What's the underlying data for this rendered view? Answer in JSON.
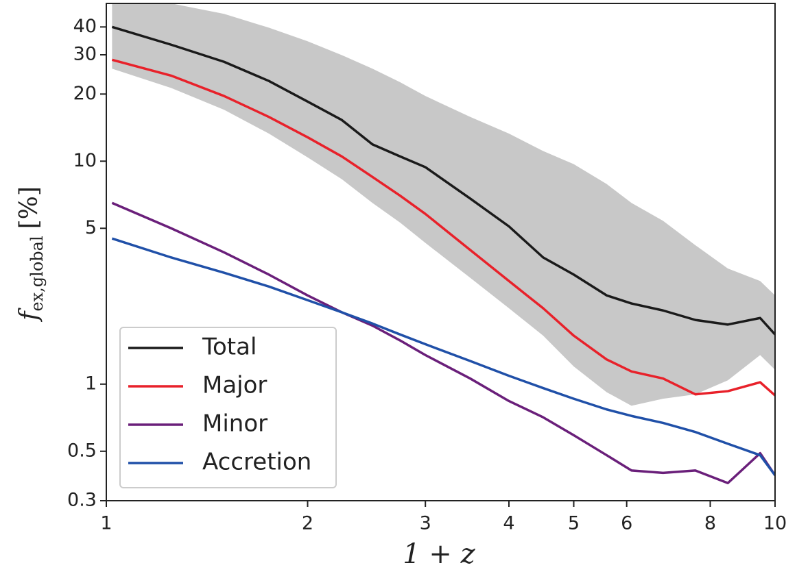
{
  "chart_data": {
    "type": "line",
    "xscale": "log",
    "yscale": "log",
    "xlabel": "1 + z",
    "ylabel": {
      "symbol": "f",
      "subscript": "ex,global",
      "unit": "[%]"
    },
    "xlim": [
      1,
      10
    ],
    "ylim": [
      0.3,
      51
    ],
    "xticks": [
      1,
      2,
      3,
      4,
      5,
      6,
      8,
      10
    ],
    "yticks": [
      0.3,
      0.5,
      1,
      5,
      10,
      20,
      30,
      40
    ],
    "legend": "lower left",
    "x": [
      1.02,
      1.25,
      1.5,
      1.75,
      2,
      2.25,
      2.5,
      2.75,
      3,
      3.5,
      4,
      4.5,
      5,
      5.6,
      6.1,
      6.8,
      7.6,
      8.5,
      9.5,
      10
    ],
    "band": {
      "color": "#c8c8c8",
      "upper": [
        55,
        51,
        45.8,
        39.7,
        34.5,
        29.9,
        26,
        22.6,
        19.6,
        15.8,
        13.3,
        11.1,
        9.7,
        7.9,
        6.5,
        5.4,
        4.2,
        3.3,
        2.9,
        2.5
      ],
      "lower": [
        26,
        21.3,
        17,
        13.3,
        10.4,
        8.3,
        6.5,
        5.3,
        4.3,
        3.0,
        2.19,
        1.65,
        1.2,
        0.92,
        0.8,
        0.86,
        0.9,
        1.04,
        1.35,
        1.16
      ]
    },
    "series": [
      {
        "name": "Total",
        "color": "#1a1a1a",
        "values": [
          40,
          33.3,
          27.9,
          22.9,
          18.5,
          15.3,
          11.9,
          10.5,
          9.4,
          6.8,
          5.1,
          3.7,
          3.1,
          2.5,
          2.3,
          2.14,
          1.94,
          1.85,
          1.98,
          1.67
        ]
      },
      {
        "name": "Major",
        "color": "#e8212a",
        "values": [
          28.5,
          24.2,
          19.6,
          15.8,
          12.8,
          10.5,
          8.5,
          7.0,
          5.8,
          4.0,
          2.9,
          2.19,
          1.65,
          1.29,
          1.14,
          1.06,
          0.9,
          0.93,
          1.02,
          0.89
        ]
      },
      {
        "name": "Minor",
        "color": "#6a1f7a",
        "values": [
          6.5,
          5.0,
          3.9,
          3.1,
          2.5,
          2.1,
          1.83,
          1.57,
          1.35,
          1.06,
          0.84,
          0.71,
          0.59,
          0.48,
          0.41,
          0.4,
          0.41,
          0.36,
          0.49,
          0.39
        ]
      },
      {
        "name": "Accretion",
        "color": "#2050a8",
        "values": [
          4.5,
          3.7,
          3.16,
          2.74,
          2.38,
          2.1,
          1.87,
          1.67,
          1.51,
          1.27,
          1.09,
          0.96,
          0.86,
          0.77,
          0.72,
          0.67,
          0.61,
          0.54,
          0.48,
          0.39
        ]
      }
    ]
  }
}
